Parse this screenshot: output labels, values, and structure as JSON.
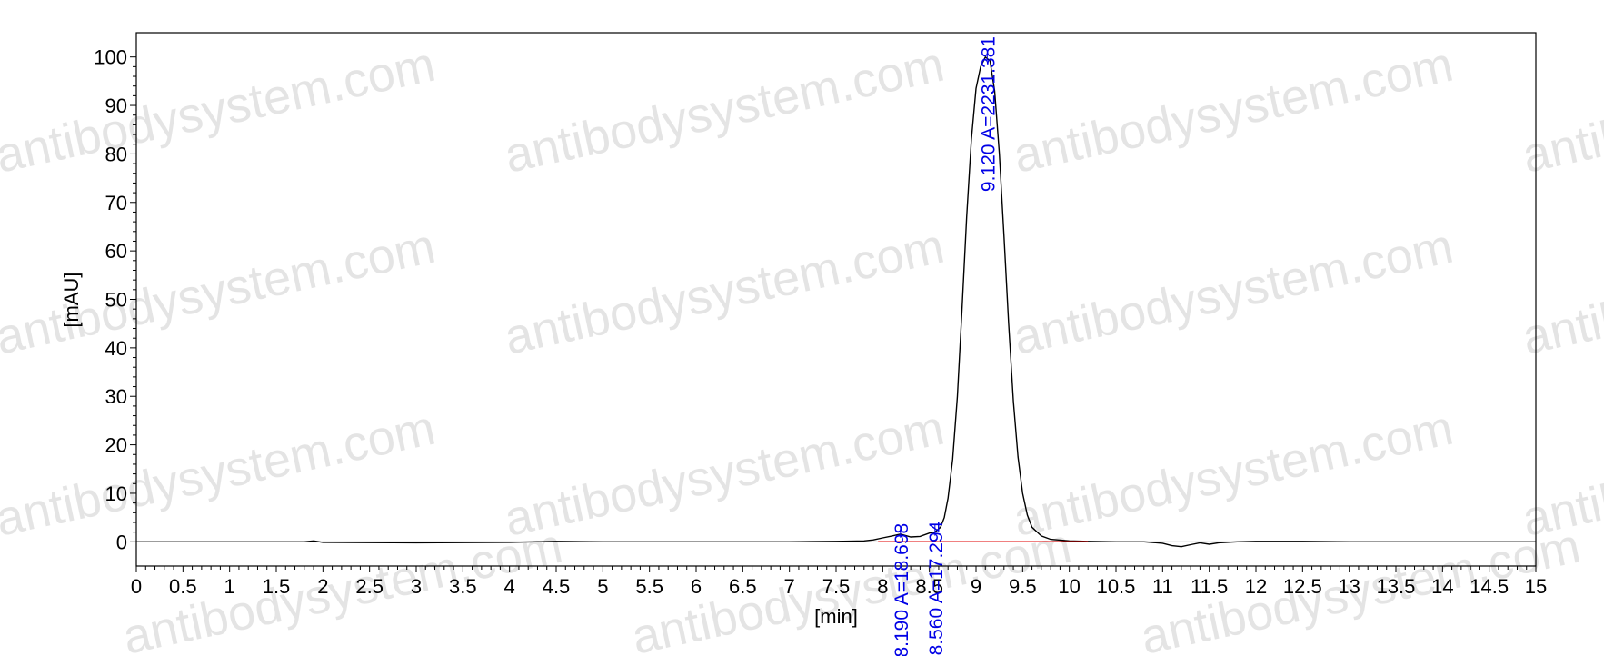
{
  "chart_data": {
    "type": "line",
    "xlabel": "[min]",
    "ylabel": "[mAU]",
    "xlim": [
      0,
      15
    ],
    "ylim": [
      -5,
      105
    ],
    "x_ticks": [
      0,
      0.5,
      1,
      1.5,
      2,
      2.5,
      3,
      3.5,
      4,
      4.5,
      5,
      5.5,
      6,
      6.5,
      7,
      7.5,
      8,
      8.5,
      9,
      9.5,
      10,
      10.5,
      11,
      11.5,
      12,
      12.5,
      13,
      13.5,
      14,
      14.5,
      15
    ],
    "y_ticks": [
      0,
      10,
      20,
      30,
      40,
      50,
      60,
      70,
      80,
      90,
      100
    ],
    "series": [
      {
        "color": "#000000",
        "x": [
          0,
          1.8,
          1.9,
          2.0,
          3.0,
          4.0,
          4.5,
          5.0,
          6.0,
          7.0,
          7.5,
          7.8,
          7.9,
          8.0,
          8.1,
          8.19,
          8.3,
          8.4,
          8.5,
          8.56,
          8.62,
          8.66,
          8.7,
          8.75,
          8.8,
          8.85,
          8.9,
          8.95,
          9.0,
          9.05,
          9.1,
          9.15,
          9.2,
          9.25,
          9.3,
          9.35,
          9.4,
          9.45,
          9.5,
          9.55,
          9.6,
          9.7,
          9.8,
          10.0,
          10.2,
          10.5,
          10.8,
          11.0,
          11.1,
          11.2,
          11.3,
          11.4,
          11.5,
          11.6,
          11.8,
          12.0,
          12.5,
          13.0,
          14.0,
          15.0
        ],
        "y": [
          0,
          0,
          0.2,
          -0.1,
          -0.2,
          -0.1,
          0.1,
          0,
          0,
          0,
          0.1,
          0.2,
          0.4,
          0.8,
          1.2,
          1.6,
          1.0,
          1.1,
          1.8,
          2.0,
          3.0,
          5.0,
          9.0,
          17.0,
          30.0,
          48.0,
          67.0,
          83.0,
          93.5,
          98.0,
          100.0,
          99.2,
          93.0,
          80.0,
          63.0,
          45.0,
          29.0,
          17.5,
          10.0,
          5.5,
          3.0,
          1.2,
          0.5,
          0.2,
          0.1,
          0,
          0,
          -0.3,
          -0.8,
          -1.0,
          -0.6,
          -0.2,
          -0.5,
          -0.2,
          0,
          0.1,
          0.1,
          0,
          0,
          0
        ]
      },
      {
        "color": "#e00000",
        "x": [
          7.95,
          10.2
        ],
        "y": [
          0.05,
          0.05
        ]
      }
    ],
    "peaks": [
      {
        "x": 8.19,
        "y": 1.6,
        "label": "8.190 A=18.698"
      },
      {
        "x": 8.56,
        "y": 2.0,
        "label": "8.560 A=17.294"
      },
      {
        "x": 9.12,
        "y": 100.0,
        "label": "9.120 A=2231.381"
      }
    ],
    "grid": false,
    "legend": "none"
  },
  "watermark": "antibodysystem.com"
}
